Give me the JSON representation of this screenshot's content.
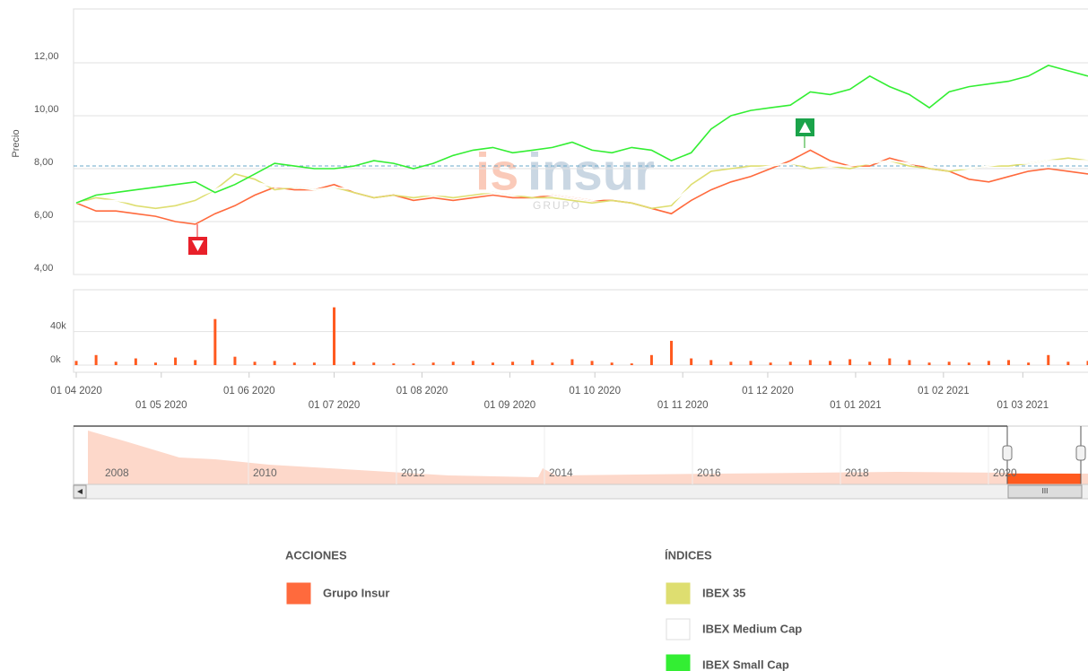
{
  "chart_data": [
    {
      "type": "line",
      "y_label": "Precio",
      "watermark": {
        "prefix": "is",
        "brand": "insur",
        "sub": "GRUPO"
      },
      "x": [
        "2020-04-01",
        "2020-04-08",
        "2020-04-15",
        "2020-04-22",
        "2020-04-29",
        "2020-05-06",
        "2020-05-13",
        "2020-05-20",
        "2020-05-27",
        "2020-06-03",
        "2020-06-10",
        "2020-06-17",
        "2020-06-24",
        "2020-07-01",
        "2020-07-08",
        "2020-07-15",
        "2020-07-22",
        "2020-07-29",
        "2020-08-05",
        "2020-08-12",
        "2020-08-19",
        "2020-08-26",
        "2020-09-02",
        "2020-09-09",
        "2020-09-16",
        "2020-09-23",
        "2020-09-30",
        "2020-10-07",
        "2020-10-14",
        "2020-10-21",
        "2020-10-28",
        "2020-11-04",
        "2020-11-11",
        "2020-11-18",
        "2020-11-25",
        "2020-12-02",
        "2020-12-09",
        "2020-12-16",
        "2020-12-23",
        "2020-12-30",
        "2021-01-06",
        "2021-01-13",
        "2021-01-20",
        "2021-01-27",
        "2021-02-03",
        "2021-02-10",
        "2021-02-17",
        "2021-02-24",
        "2021-03-03",
        "2021-03-10",
        "2021-03-17",
        "2021-03-24"
      ],
      "xlim": [
        "2020-04-01",
        "2021-03-24"
      ],
      "series": [
        {
          "name": "Grupo Insur",
          "color": "#ff6a3d",
          "values": [
            6.7,
            6.4,
            6.4,
            6.3,
            6.2,
            6.0,
            5.9,
            6.3,
            6.6,
            7.0,
            7.3,
            7.2,
            7.2,
            7.4,
            7.1,
            6.9,
            7.0,
            6.8,
            6.9,
            6.8,
            6.9,
            7.0,
            6.9,
            6.9,
            7.0,
            6.9,
            6.8,
            6.8,
            6.7,
            6.5,
            6.3,
            6.8,
            7.2,
            7.5,
            7.7,
            8.0,
            8.3,
            8.7,
            8.3,
            8.1,
            8.1,
            8.4,
            8.2,
            8.0,
            7.9,
            7.6,
            7.5,
            7.7,
            7.9,
            8.0,
            7.9,
            7.8
          ]
        },
        {
          "name": "IBEX 35",
          "color": "#dede70",
          "values": [
            6.7,
            6.9,
            6.8,
            6.6,
            6.5,
            6.6,
            6.8,
            7.2,
            7.8,
            7.6,
            7.2,
            7.3,
            7.2,
            7.3,
            7.1,
            6.9,
            7.0,
            6.9,
            7.0,
            6.9,
            7.0,
            7.1,
            7.0,
            6.9,
            6.9,
            6.8,
            6.7,
            6.8,
            6.7,
            6.5,
            6.6,
            7.4,
            7.9,
            8.0,
            8.1,
            8.1,
            8.2,
            8.0,
            8.1,
            8.0,
            8.2,
            8.3,
            8.1,
            8.0,
            7.9,
            8.0,
            8.1,
            8.1,
            8.2,
            8.3,
            8.4,
            8.3
          ]
        },
        {
          "name": "IBEX Medium Cap",
          "color": "#ffffff",
          "values": [
            6.7,
            6.8,
            6.8,
            6.7,
            6.6,
            6.7,
            6.9,
            7.2,
            7.6,
            7.5,
            7.3,
            7.3,
            7.2,
            7.3,
            7.2,
            7.0,
            7.1,
            7.0,
            7.0,
            7.0,
            7.1,
            7.1,
            7.0,
            7.0,
            7.0,
            6.9,
            6.8,
            6.9,
            6.8,
            6.6,
            6.7,
            7.3,
            7.8,
            7.9,
            8.0,
            8.1,
            8.2,
            8.1,
            8.1,
            8.1,
            8.2,
            8.3,
            8.2,
            8.1,
            8.0,
            8.0,
            8.1,
            8.2,
            8.2,
            8.3,
            8.3,
            8.3
          ]
        },
        {
          "name": "IBEX Small Cap",
          "color": "#33ee33",
          "values": [
            6.7,
            7.0,
            7.1,
            7.2,
            7.3,
            7.4,
            7.5,
            7.1,
            7.4,
            7.8,
            8.2,
            8.1,
            8.0,
            8.0,
            8.1,
            8.3,
            8.2,
            8.0,
            8.2,
            8.5,
            8.7,
            8.8,
            8.6,
            8.7,
            8.8,
            9.0,
            8.7,
            8.6,
            8.8,
            8.7,
            8.3,
            8.6,
            9.5,
            10.0,
            10.2,
            10.3,
            10.4,
            10.9,
            10.8,
            11.0,
            11.5,
            11.1,
            10.8,
            10.3,
            10.9,
            11.1,
            11.2,
            11.3,
            11.5,
            11.9,
            11.7,
            11.5
          ]
        }
      ],
      "ylim": [
        4,
        14
      ],
      "yticks": [
        {
          "value": 4,
          "label": "4,00"
        },
        {
          "value": 6,
          "label": "6,00"
        },
        {
          "value": 8,
          "label": "8,00"
        },
        {
          "value": 10,
          "label": "10,00"
        },
        {
          "value": 12,
          "label": "12,00"
        }
      ],
      "reference_line": 8.1,
      "grid": true
    },
    {
      "type": "bar",
      "color": "#ff5a1f",
      "xlim": [
        "2020-04-01",
        "2021-03-24"
      ],
      "values": [
        5000,
        12000,
        4000,
        8000,
        3000,
        9000,
        6000,
        55000,
        10000,
        4000,
        5000,
        3000,
        3000,
        69000,
        4000,
        3000,
        2000,
        2000,
        3000,
        4000,
        5000,
        3000,
        4000,
        6000,
        3000,
        7000,
        5000,
        3000,
        2000,
        12000,
        29000,
        8000,
        6000,
        4000,
        5000,
        3000,
        4000,
        6000,
        5000,
        7000,
        4000,
        8000,
        6000,
        3000,
        4000,
        3000,
        5000,
        6000,
        3000,
        12000,
        4000,
        5000
      ],
      "ylim": [
        0,
        90000
      ],
      "yticks": [
        {
          "value": 0,
          "label": "0k"
        },
        {
          "value": 40000,
          "label": "40k"
        }
      ],
      "xticks": [
        {
          "value": "2020-04-01",
          "label": "01 04 2020"
        },
        {
          "value": "2020-05-01",
          "label": "01 05 2020"
        },
        {
          "value": "2020-06-01",
          "label": "01 06 2020"
        },
        {
          "value": "2020-07-01",
          "label": "01 07 2020"
        },
        {
          "value": "2020-08-01",
          "label": "01 08 2020"
        },
        {
          "value": "2020-09-01",
          "label": "01 09 2020"
        },
        {
          "value": "2020-10-01",
          "label": "01 10 2020"
        },
        {
          "value": "2020-11-01",
          "label": "01 11 2020"
        },
        {
          "value": "2020-12-01",
          "label": "01 12 2020"
        },
        {
          "value": "2021-01-01",
          "label": "01 01 2021"
        },
        {
          "value": "2021-02-01",
          "label": "01 02 2021"
        },
        {
          "value": "2021-03-01",
          "label": "01 03 2021"
        }
      ],
      "grid": true
    }
  ],
  "navigator": {
    "labels": [
      "2008",
      "2010",
      "2012",
      "2014",
      "2016",
      "2018",
      "2020"
    ],
    "scroll_label": "III"
  },
  "legend": {
    "titles": [
      "ACCIONES",
      "ÍNDICES"
    ]
  }
}
